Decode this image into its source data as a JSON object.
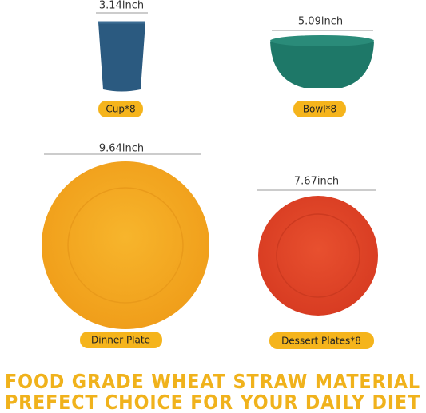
{
  "items": [
    {
      "dimension": "3.14inch",
      "label": "Cup*8"
    },
    {
      "dimension": "5.09inch",
      "label": "Bowl*8"
    },
    {
      "dimension": "9.64inch",
      "label": "Dinner Plate"
    },
    {
      "dimension": "7.67inch",
      "label": "Dessert Plates*8"
    }
  ],
  "footer": {
    "line1": "FOOD GRADE WHEAT STRAW MATERIAL",
    "line2": "PREFECT CHOICE FOR YOUR DAILY DIET"
  }
}
